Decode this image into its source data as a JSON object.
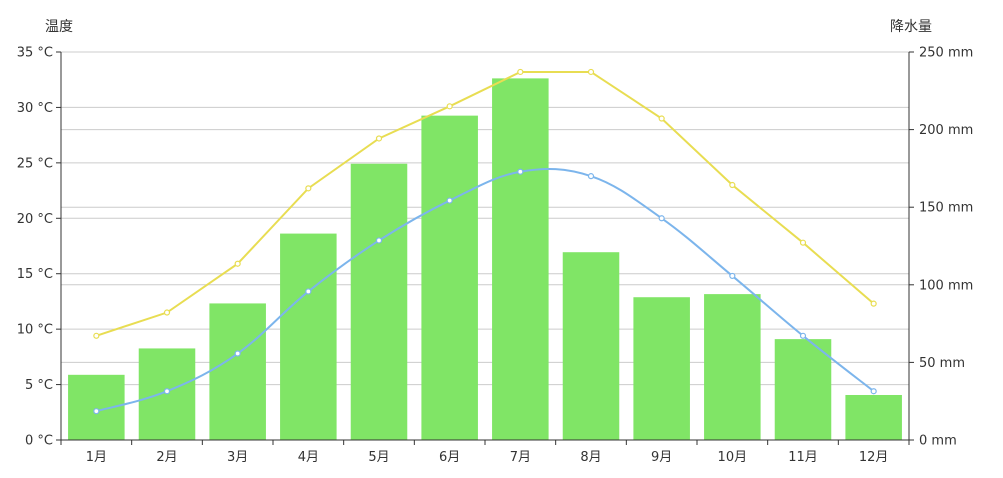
{
  "chart_data": {
    "type": "bar",
    "categories": [
      "1月",
      "2月",
      "3月",
      "4月",
      "5月",
      "6月",
      "7月",
      "8月",
      "9月",
      "10月",
      "11月",
      "12月"
    ],
    "ylabel_left": "温度",
    "ylabel_right": "降水量",
    "y_left": {
      "min": 0,
      "max": 35,
      "ticks": [
        "0 °C",
        "5 °C",
        "10 °C",
        "15 °C",
        "20 °C",
        "25 °C",
        "30 °C",
        "35 °C"
      ]
    },
    "y_right": {
      "min": 0,
      "max": 250,
      "ticks": [
        "0 mm",
        "50 mm",
        "100 mm",
        "150 mm",
        "200 mm",
        "250 mm"
      ]
    },
    "grid": true,
    "series": [
      {
        "kind": "bar",
        "axis": "right",
        "color": "#80e566",
        "values": [
          42,
          59,
          88,
          133,
          178,
          209,
          233,
          121,
          92,
          94,
          65,
          29
        ]
      },
      {
        "kind": "line",
        "axis": "left",
        "color": "#e8dd52",
        "values": [
          9.4,
          11.5,
          15.9,
          22.7,
          27.2,
          30.1,
          33.2,
          33.2,
          29.0,
          23.0,
          17.8,
          12.3
        ]
      },
      {
        "kind": "line",
        "axis": "left",
        "color": "#7cb5ec",
        "values": [
          2.6,
          4.4,
          7.8,
          13.4,
          18.0,
          21.6,
          24.2,
          23.8,
          20.0,
          14.8,
          9.4,
          4.4
        ]
      }
    ]
  }
}
